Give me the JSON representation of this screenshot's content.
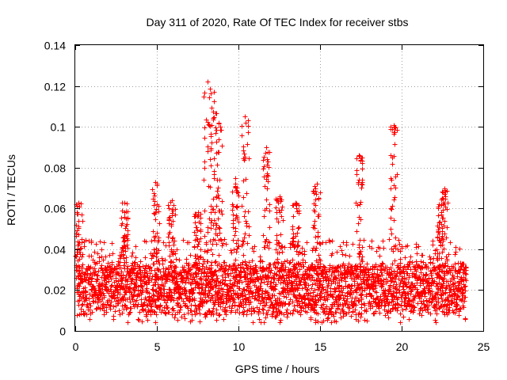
{
  "chart_data": {
    "type": "scatter",
    "title": "Day 311 of 2020, Rate Of TEC Index for receiver stbs",
    "xlabel": "GPS time / hours",
    "ylabel": "ROTI / TECUs",
    "xlim": [
      0,
      25
    ],
    "ylim": [
      0,
      0.14
    ],
    "xticks": [
      0,
      5,
      10,
      15,
      20,
      25
    ],
    "xtick_labels": [
      "0",
      "5",
      "10",
      "15",
      "20",
      "25"
    ],
    "yticks": [
      0,
      0.02,
      0.04,
      0.06,
      0.08,
      0.1,
      0.12,
      0.14
    ],
    "ytick_labels": [
      "0",
      "0.02",
      "0.04",
      "0.06",
      "0.08",
      "0.1",
      "0.12",
      "0.14"
    ],
    "grid": true,
    "marker": "+",
    "color": "#ff0000",
    "series": [
      {
        "name": "ROTI",
        "description": "dense scatter of ROTI samples, mostly 0.005-0.045 TECU/min over 0-24 h",
        "peaks": [
          {
            "x": 0.2,
            "y": 0.063
          },
          {
            "x": 3.0,
            "y": 0.063
          },
          {
            "x": 4.9,
            "y": 0.073
          },
          {
            "x": 5.9,
            "y": 0.064
          },
          {
            "x": 7.5,
            "y": 0.058
          },
          {
            "x": 8.1,
            "y": 0.122
          },
          {
            "x": 8.5,
            "y": 0.117
          },
          {
            "x": 8.8,
            "y": 0.102
          },
          {
            "x": 9.8,
            "y": 0.075
          },
          {
            "x": 10.4,
            "y": 0.105
          },
          {
            "x": 11.7,
            "y": 0.09
          },
          {
            "x": 12.5,
            "y": 0.066
          },
          {
            "x": 13.5,
            "y": 0.063
          },
          {
            "x": 14.8,
            "y": 0.072
          },
          {
            "x": 17.4,
            "y": 0.086
          },
          {
            "x": 19.5,
            "y": 0.101
          },
          {
            "x": 22.3,
            "y": 0.062
          },
          {
            "x": 22.6,
            "y": 0.07
          }
        ]
      }
    ]
  }
}
